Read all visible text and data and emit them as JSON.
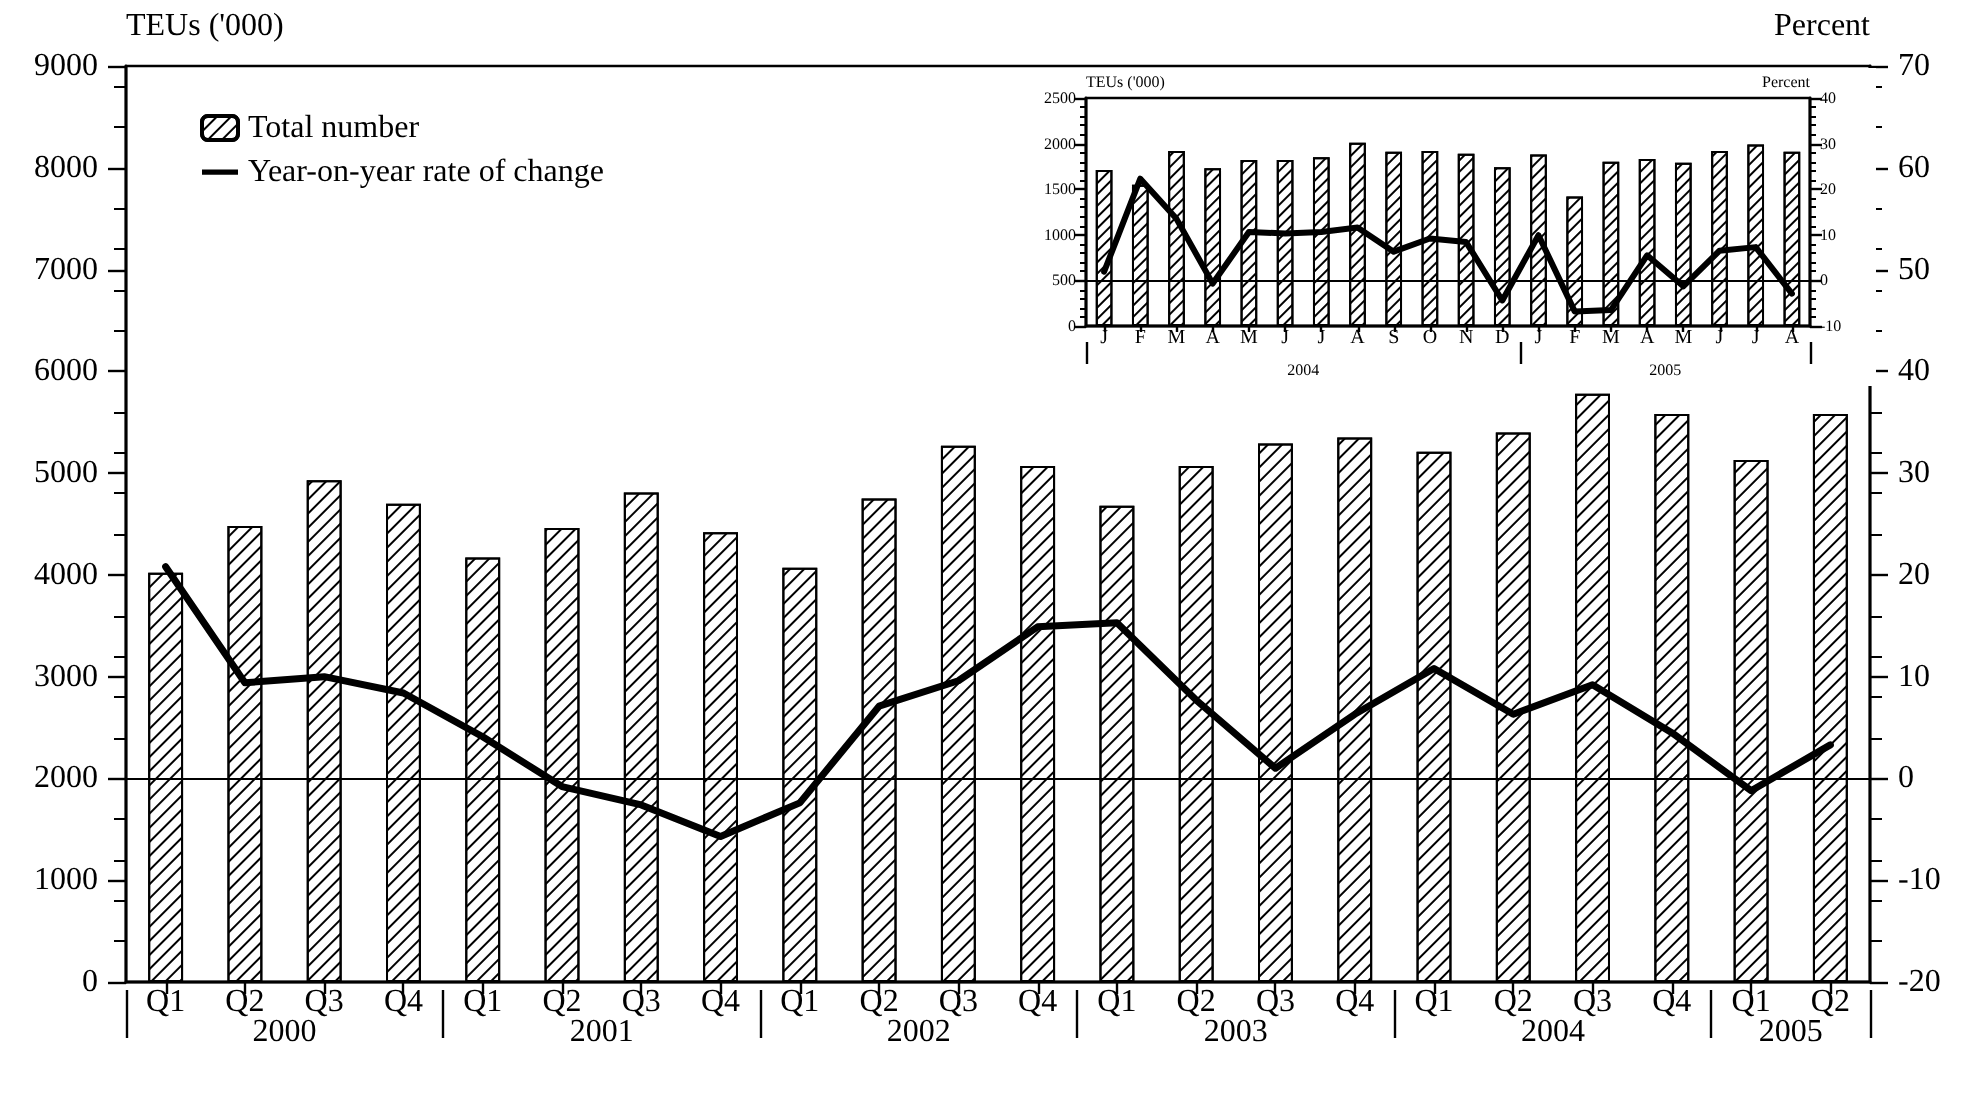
{
  "chart_data": [
    {
      "type": "bar",
      "categories": [
        "Q1",
        "Q2",
        "Q3",
        "Q4",
        "Q1",
        "Q2",
        "Q3",
        "Q4",
        "Q1",
        "Q2",
        "Q3",
        "Q4",
        "Q1",
        "Q2",
        "Q3",
        "Q4",
        "Q1",
        "Q2",
        "Q3",
        "Q4",
        "Q1",
        "Q2"
      ],
      "series": [
        {
          "name": "Total number",
          "color": "#ffffff",
          "values": [
            4020,
            4480,
            4930,
            4700,
            4170,
            4460,
            4810,
            4420,
            4070,
            4750,
            5270,
            5070,
            4680,
            5070,
            5290,
            5350,
            5210,
            5400,
            5780,
            5580,
            5130,
            5580
          ]
        },
        {
          "name": "Year-on-year rate of change",
          "type": "line",
          "axis": "y2",
          "color": "#000000",
          "values": [
            20.8,
            9.4,
            10.0,
            8.4,
            4.1,
            -0.8,
            -2.6,
            -5.7,
            -2.4,
            7.1,
            9.6,
            14.9,
            15.3,
            7.7,
            1.0,
            6.3,
            10.8,
            6.3,
            9.2,
            4.5,
            -1.2,
            3.3
          ]
        }
      ],
      "ylabel": "TEUs ('000)",
      "y2label": "Percent",
      "ylim": [
        0,
        9000
      ],
      "yticks": [
        0,
        1000,
        2000,
        3000,
        4000,
        5000,
        6000,
        7000,
        8000,
        9000
      ],
      "y2lim": [
        -20,
        70
      ],
      "y2ticks": [
        -20,
        -10,
        0,
        10,
        20,
        30,
        40,
        50,
        60,
        70
      ],
      "annotations": [
        "2000",
        "2001",
        "2002",
        "2003",
        "2004",
        "2005"
      ],
      "ref_lines": [
        {
          "axis": "y2",
          "value": 0
        }
      ],
      "legend": "top left",
      "marker": "none",
      "grid": false
    },
    {
      "type": "bar",
      "categories": [
        "J",
        "F",
        "M",
        "A",
        "M",
        "J",
        "J",
        "A",
        "S",
        "O",
        "N",
        "D",
        "J",
        "F",
        "M",
        "A",
        "M",
        "J",
        "J",
        "A"
      ],
      "series": [
        {
          "color": "#ffffff",
          "values": [
            1710,
            1550,
            1920,
            1730,
            1820,
            1820,
            1850,
            2010,
            1910,
            1920,
            1890,
            1740,
            1880,
            1420,
            1800,
            1830,
            1790,
            1920,
            1990,
            1910
          ]
        },
        {
          "type": "line",
          "axis": "y2",
          "color": "#000000",
          "values": [
            1.9,
            22.3,
            13.5,
            -0.7,
            10.6,
            10.3,
            10.6,
            11.6,
            6.3,
            9.2,
            8.4,
            -4.4,
            9.9,
            -6.8,
            -6.5,
            5.5,
            -1.3,
            6.5,
            7.3,
            -2.9
          ]
        }
      ],
      "ylabel": "TEUs ('000)",
      "y2label": "Percent",
      "ylim": [
        0,
        2500
      ],
      "yticks": [
        0,
        500,
        1000,
        1500,
        2000,
        2500
      ],
      "y2lim": [
        -10,
        40
      ],
      "y2ticks": [
        -10,
        0,
        10,
        20,
        30,
        40
      ],
      "annotations": [
        "2004",
        "2005"
      ],
      "ref_lines": [
        {
          "axis": "y2",
          "value": 0
        }
      ],
      "marker": "none",
      "grid": false
    }
  ]
}
